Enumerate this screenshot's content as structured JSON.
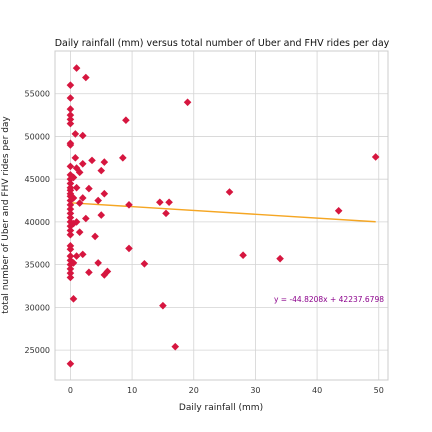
{
  "chart_data": {
    "type": "scatter",
    "title": "Daily rainfall (mm) versus total number of Uber and FHV rides per day",
    "xlabel": "Daily rainfall (mm)",
    "ylabel": "total number of Uber and FHV rides per day",
    "xlim": [
      -2.5,
      51.5
    ],
    "ylim": [
      21500,
      60000
    ],
    "x_ticks": [
      0,
      10,
      20,
      30,
      40,
      50
    ],
    "y_ticks": [
      25000,
      30000,
      35000,
      40000,
      45000,
      50000,
      55000
    ],
    "grid": true,
    "marker": "diamond",
    "point_color": "#d6163f",
    "line_color": "#f5a623",
    "annotation_color": "#8b008b",
    "regression": {
      "slope": -44.8208,
      "intercept": 42237.6798,
      "x_range": [
        0,
        49.5
      ],
      "label": "y = -44.8208x + 42237.6798"
    },
    "points": [
      [
        0.0,
        56000
      ],
      [
        0.0,
        54500
      ],
      [
        0.0,
        53200
      ],
      [
        0.0,
        52500
      ],
      [
        0.0,
        52000
      ],
      [
        0.0,
        51500
      ],
      [
        0.0,
        49200
      ],
      [
        0.0,
        49000
      ],
      [
        0.0,
        46500
      ],
      [
        0.0,
        45500
      ],
      [
        0.0,
        45000
      ],
      [
        0.0,
        44500
      ],
      [
        0.0,
        44000
      ],
      [
        0.0,
        43700
      ],
      [
        0.0,
        43300
      ],
      [
        0.0,
        43000
      ],
      [
        0.0,
        42500
      ],
      [
        0.0,
        42000
      ],
      [
        0.0,
        41500
      ],
      [
        0.0,
        41000
      ],
      [
        0.0,
        40500
      ],
      [
        0.0,
        40000
      ],
      [
        0.0,
        39500
      ],
      [
        0.0,
        39000
      ],
      [
        0.0,
        38500
      ],
      [
        0.0,
        37200
      ],
      [
        0.0,
        36800
      ],
      [
        0.0,
        36000
      ],
      [
        0.0,
        35500
      ],
      [
        0.0,
        35000
      ],
      [
        0.0,
        34500
      ],
      [
        0.0,
        34000
      ],
      [
        0.0,
        33500
      ],
      [
        0.0,
        23400
      ],
      [
        0.5,
        45200
      ],
      [
        0.5,
        42800
      ],
      [
        0.5,
        39800
      ],
      [
        0.5,
        35200
      ],
      [
        0.5,
        31000
      ],
      [
        1.0,
        58000
      ],
      [
        0.8,
        50300
      ],
      [
        0.8,
        47500
      ],
      [
        1.0,
        46300
      ],
      [
        1.0,
        44000
      ],
      [
        1.0,
        40000
      ],
      [
        1.0,
        36000
      ],
      [
        1.5,
        45800
      ],
      [
        1.5,
        42200
      ],
      [
        1.5,
        38800
      ],
      [
        2.0,
        50100
      ],
      [
        2.0,
        46800
      ],
      [
        2.0,
        42800
      ],
      [
        2.0,
        36200
      ],
      [
        2.5,
        56900
      ],
      [
        2.5,
        40400
      ],
      [
        3.0,
        43900
      ],
      [
        3.0,
        34100
      ],
      [
        3.5,
        47200
      ],
      [
        4.0,
        38300
      ],
      [
        4.5,
        42500
      ],
      [
        4.5,
        35200
      ],
      [
        5.0,
        46000
      ],
      [
        5.0,
        40800
      ],
      [
        5.5,
        47000
      ],
      [
        5.5,
        43300
      ],
      [
        5.5,
        33800
      ],
      [
        6.0,
        34200
      ],
      [
        8.5,
        47500
      ],
      [
        9.0,
        51900
      ],
      [
        9.5,
        42000
      ],
      [
        9.5,
        36900
      ],
      [
        12.0,
        35100
      ],
      [
        14.5,
        42300
      ],
      [
        15.0,
        30200
      ],
      [
        15.5,
        41000
      ],
      [
        16.0,
        42300
      ],
      [
        17.0,
        25400
      ],
      [
        19.0,
        54000
      ],
      [
        25.8,
        43500
      ],
      [
        28.0,
        36100
      ],
      [
        34.0,
        35700
      ],
      [
        43.5,
        41300
      ],
      [
        49.5,
        47600
      ]
    ]
  }
}
